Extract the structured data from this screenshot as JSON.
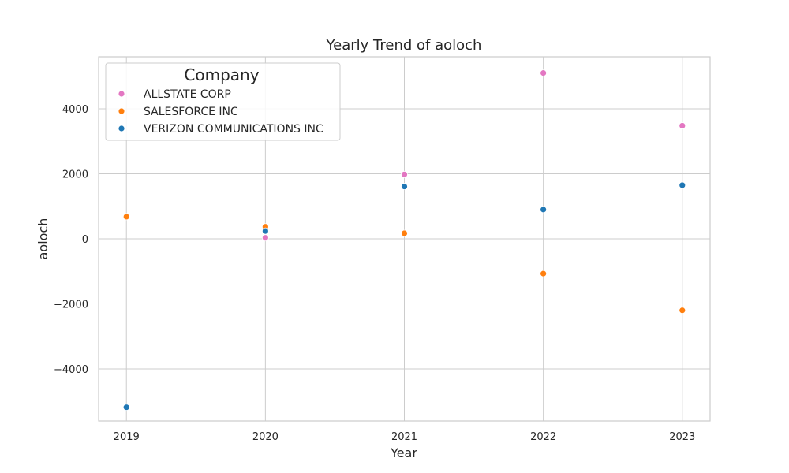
{
  "chart_data": {
    "type": "scatter",
    "title": "Yearly Trend of aoloch",
    "xlabel": "Year",
    "ylabel": "aoloch",
    "categories": [
      "2019",
      "2020",
      "2021",
      "2022",
      "2023"
    ],
    "x": [
      2019,
      2020,
      2021,
      2022,
      2023
    ],
    "xlim": [
      2018.8,
      2023.2
    ],
    "ylim": [
      -5600,
      5600
    ],
    "yticks": [
      -4000,
      -2000,
      0,
      2000,
      4000
    ],
    "ytick_labels": [
      "−4000",
      "−2000",
      "0",
      "2000",
      "4000"
    ],
    "grid": true,
    "legend": {
      "title": "Company",
      "placement": "top-left"
    },
    "series": [
      {
        "name": "ALLSTATE CORP",
        "color": "#e377c2",
        "points": [
          [
            2020,
            30
          ],
          [
            2021,
            1980
          ],
          [
            2022,
            5100
          ],
          [
            2023,
            3480
          ]
        ]
      },
      {
        "name": "SALESFORCE INC",
        "color": "#ff7f0e",
        "points": [
          [
            2019,
            680
          ],
          [
            2020,
            370
          ],
          [
            2021,
            170
          ],
          [
            2022,
            -1070
          ],
          [
            2023,
            -2200
          ]
        ]
      },
      {
        "name": "VERIZON COMMUNICATIONS INC",
        "color": "#1f77b4",
        "points": [
          [
            2019,
            -5180
          ],
          [
            2020,
            240
          ],
          [
            2021,
            1610
          ],
          [
            2022,
            900
          ],
          [
            2023,
            1650
          ]
        ]
      }
    ]
  }
}
